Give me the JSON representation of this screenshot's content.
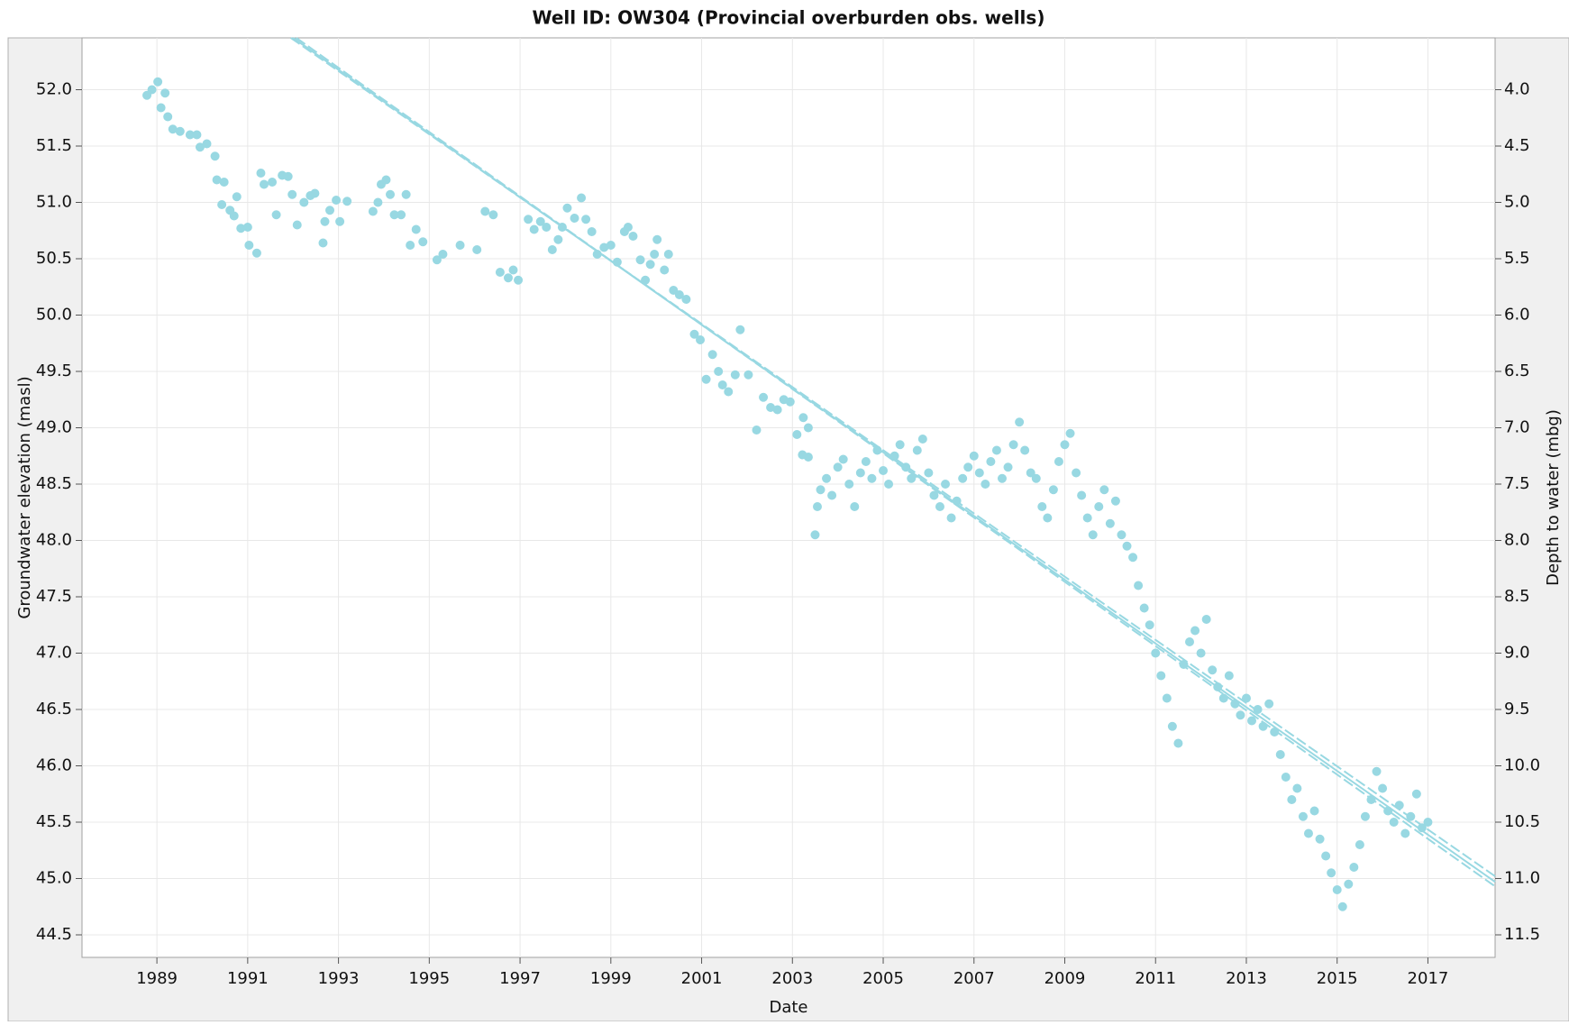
{
  "chart_data": {
    "type": "scatter",
    "title": "Well ID: OW304 (Provincial overburden obs. wells)",
    "x_label": "Date",
    "y_label": "Groundwater elevation (masl)",
    "y2_label": "Depth to water (mbg)",
    "color": "#98d8e2",
    "grid": true,
    "xlim": [
      1987.35,
      2018.48
    ],
    "xticks": [
      1989,
      1991,
      1993,
      1995,
      1997,
      1999,
      2001,
      2003,
      2005,
      2007,
      2009,
      2011,
      2013,
      2015,
      2017
    ],
    "ylim": [
      44.3,
      52.46
    ],
    "yticks": [
      {
        "value": 44.5,
        "label": "44.5"
      },
      {
        "value": 45,
        "label": "45.0"
      },
      45.5,
      {
        "value": 46,
        "label": "46.0"
      },
      46.5,
      {
        "value": 47,
        "label": "47.0"
      },
      47.5,
      {
        "value": 48,
        "label": "48.0"
      },
      48.5,
      {
        "value": 49,
        "label": "49.0"
      },
      49.5,
      {
        "value": 50,
        "label": "50.0"
      },
      50.5,
      {
        "value": 51,
        "label": "51.0"
      },
      51.5,
      {
        "value": 52,
        "label": "52.0"
      }
    ],
    "y2lim": [
      11.7,
      3.54
    ],
    "y2ticks": [
      {
        "value": 4,
        "label": "4.0"
      },
      4.5,
      {
        "value": 5,
        "label": "5.0"
      },
      5.5,
      {
        "value": 6,
        "label": "6.0"
      },
      6.5,
      {
        "value": 7,
        "label": "7.0"
      },
      7.5,
      {
        "value": 8,
        "label": "8.0"
      },
      8.5,
      {
        "value": 9,
        "label": "9.0"
      },
      9.5,
      {
        "value": 10,
        "label": "10.0"
      },
      10.5,
      {
        "value": 11,
        "label": "11.0"
      },
      11.5
    ],
    "x": [
      1988.78,
      1988.89,
      1989.02,
      1989.18,
      1989.09,
      1989.24,
      1989.35,
      1989.51,
      1989.73,
      1989.88,
      1989.95,
      1990.1,
      1990.28,
      1990.32,
      1990.48,
      1990.43,
      1990.61,
      1990.7,
      1990.76,
      1990.85,
      1991.0,
      1991.03,
      1991.2,
      1991.29,
      1991.36,
      1991.54,
      1991.63,
      1991.76,
      1991.89,
      1991.98,
      1992.09,
      1992.24,
      1992.38,
      1992.48,
      1992.66,
      1992.7,
      1992.81,
      1992.95,
      1993.03,
      1993.19,
      1993.76,
      1993.87,
      1993.94,
      1994.05,
      1994.14,
      1994.23,
      1994.38,
      1994.49,
      1994.58,
      1994.71,
      1994.86,
      1995.17,
      1995.3,
      1995.68,
      1996.05,
      1996.23,
      1996.41,
      1996.56,
      1996.74,
      1996.85,
      1996.96,
      1997.18,
      1997.31,
      1997.45,
      1997.58,
      1997.71,
      1997.84,
      1997.93,
      1998.04,
      1998.2,
      1998.35,
      1998.45,
      1998.58,
      1998.7,
      1998.85,
      1999.0,
      1999.14,
      1999.3,
      1999.38,
      1999.49,
      1999.65,
      1999.76,
      1999.87,
      1999.96,
      2000.02,
      2000.18,
      2000.27,
      2000.38,
      2000.51,
      2000.66,
      2000.84,
      2000.97,
      2001.1,
      2001.24,
      2001.37,
      2001.46,
      2001.59,
      2001.74,
      2001.85,
      2002.03,
      2002.21,
      2002.36,
      2002.52,
      2002.67,
      2002.81,
      2002.95,
      2003.1,
      2003.24,
      2003.35,
      2003.22,
      2003.35,
      2003.5,
      2003.55,
      2003.62,
      2003.75,
      2003.87,
      2004.0,
      2004.12,
      2004.25,
      2004.37,
      2004.5,
      2004.62,
      2004.75,
      2004.87,
      2005.0,
      2005.12,
      2005.25,
      2005.37,
      2005.5,
      2005.62,
      2005.75,
      2005.87,
      2006.0,
      2006.12,
      2006.25,
      2006.37,
      2006.5,
      2006.62,
      2006.75,
      2006.87,
      2007.0,
      2007.12,
      2007.25,
      2007.37,
      2007.5,
      2007.62,
      2007.75,
      2007.87,
      2008.0,
      2008.12,
      2008.25,
      2008.37,
      2008.5,
      2008.62,
      2008.75,
      2008.87,
      2009.0,
      2009.12,
      2009.25,
      2009.37,
      2009.5,
      2009.62,
      2009.75,
      2009.87,
      2010.0,
      2010.12,
      2010.25,
      2010.37,
      2010.5,
      2010.62,
      2010.75,
      2010.87,
      2011.0,
      2011.12,
      2011.25,
      2011.37,
      2011.5,
      2011.62,
      2011.75,
      2011.87,
      2012.0,
      2012.12,
      2012.25,
      2012.37,
      2012.5,
      2012.62,
      2012.75,
      2012.87,
      2013.0,
      2013.12,
      2013.25,
      2013.37,
      2013.5,
      2013.62,
      2013.75,
      2013.87,
      2014.0,
      2014.12,
      2014.25,
      2014.37,
      2014.5,
      2014.62,
      2014.75,
      2014.87,
      2015.0,
      2015.12,
      2015.25,
      2015.37,
      2015.5,
      2015.62,
      2015.75,
      2015.87,
      2016.0,
      2016.12,
      2016.25,
      2016.37,
      2016.5,
      2016.62,
      2016.75,
      2016.87,
      2017.0
    ],
    "values": [
      51.95,
      52.0,
      52.07,
      51.97,
      51.84,
      51.76,
      51.65,
      51.63,
      51.6,
      51.6,
      51.49,
      51.52,
      51.41,
      51.2,
      51.18,
      50.98,
      50.93,
      50.88,
      51.05,
      50.77,
      50.78,
      50.62,
      50.55,
      51.26,
      51.16,
      51.18,
      50.89,
      51.24,
      51.23,
      51.07,
      50.8,
      51.0,
      51.06,
      51.08,
      50.64,
      50.83,
      50.93,
      51.02,
      50.83,
      51.01,
      50.92,
      51.0,
      51.16,
      51.2,
      51.07,
      50.89,
      50.89,
      51.07,
      50.62,
      50.76,
      50.65,
      50.49,
      50.54,
      50.62,
      50.58,
      50.92,
      50.89,
      50.38,
      50.33,
      50.4,
      50.31,
      50.85,
      50.76,
      50.83,
      50.78,
      50.58,
      50.67,
      50.78,
      50.95,
      50.86,
      51.04,
      50.85,
      50.74,
      50.54,
      50.6,
      50.62,
      50.47,
      50.74,
      50.78,
      50.7,
      50.49,
      50.31,
      50.45,
      50.54,
      50.67,
      50.4,
      50.54,
      50.22,
      50.18,
      50.14,
      49.83,
      49.78,
      49.43,
      49.65,
      49.5,
      49.38,
      49.32,
      49.47,
      49.87,
      49.47,
      48.98,
      49.27,
      49.18,
      49.16,
      49.25,
      49.23,
      48.94,
      49.09,
      49.0,
      48.76,
      48.74,
      48.05,
      48.3,
      48.45,
      48.55,
      48.4,
      48.65,
      48.72,
      48.5,
      48.3,
      48.6,
      48.7,
      48.55,
      48.8,
      48.62,
      48.5,
      48.75,
      48.85,
      48.65,
      48.55,
      48.8,
      48.9,
      48.6,
      48.4,
      48.3,
      48.5,
      48.2,
      48.35,
      48.55,
      48.65,
      48.75,
      48.6,
      48.5,
      48.7,
      48.8,
      48.55,
      48.65,
      48.85,
      49.05,
      48.8,
      48.6,
      48.55,
      48.3,
      48.2,
      48.45,
      48.7,
      48.85,
      48.95,
      48.6,
      48.4,
      48.2,
      48.05,
      48.3,
      48.45,
      48.15,
      48.35,
      48.05,
      47.95,
      47.85,
      47.6,
      47.4,
      47.25,
      47.0,
      46.8,
      46.6,
      46.35,
      46.2,
      46.9,
      47.1,
      47.2,
      47.0,
      47.3,
      46.85,
      46.7,
      46.6,
      46.8,
      46.55,
      46.45,
      46.6,
      46.4,
      46.5,
      46.35,
      46.55,
      46.3,
      46.1,
      45.9,
      45.7,
      45.8,
      45.55,
      45.4,
      45.6,
      45.35,
      45.2,
      45.05,
      44.9,
      44.75,
      44.95,
      45.1,
      45.3,
      45.55,
      45.7,
      45.95,
      45.8,
      45.6,
      45.5,
      45.65,
      45.4,
      45.55,
      45.75,
      45.45,
      45.5
    ],
    "fit_lines": [
      {
        "x": [
          1991.95,
          2018.48
        ],
        "values": [
          52.46,
          45.02
        ],
        "dashed": true
      },
      {
        "x": [
          1992.0,
          2018.48
        ],
        "values": [
          52.46,
          44.97
        ],
        "dashed": false
      },
      {
        "x": [
          1992.07,
          2018.48
        ],
        "values": [
          52.46,
          44.93
        ],
        "dashed": true
      }
    ]
  }
}
